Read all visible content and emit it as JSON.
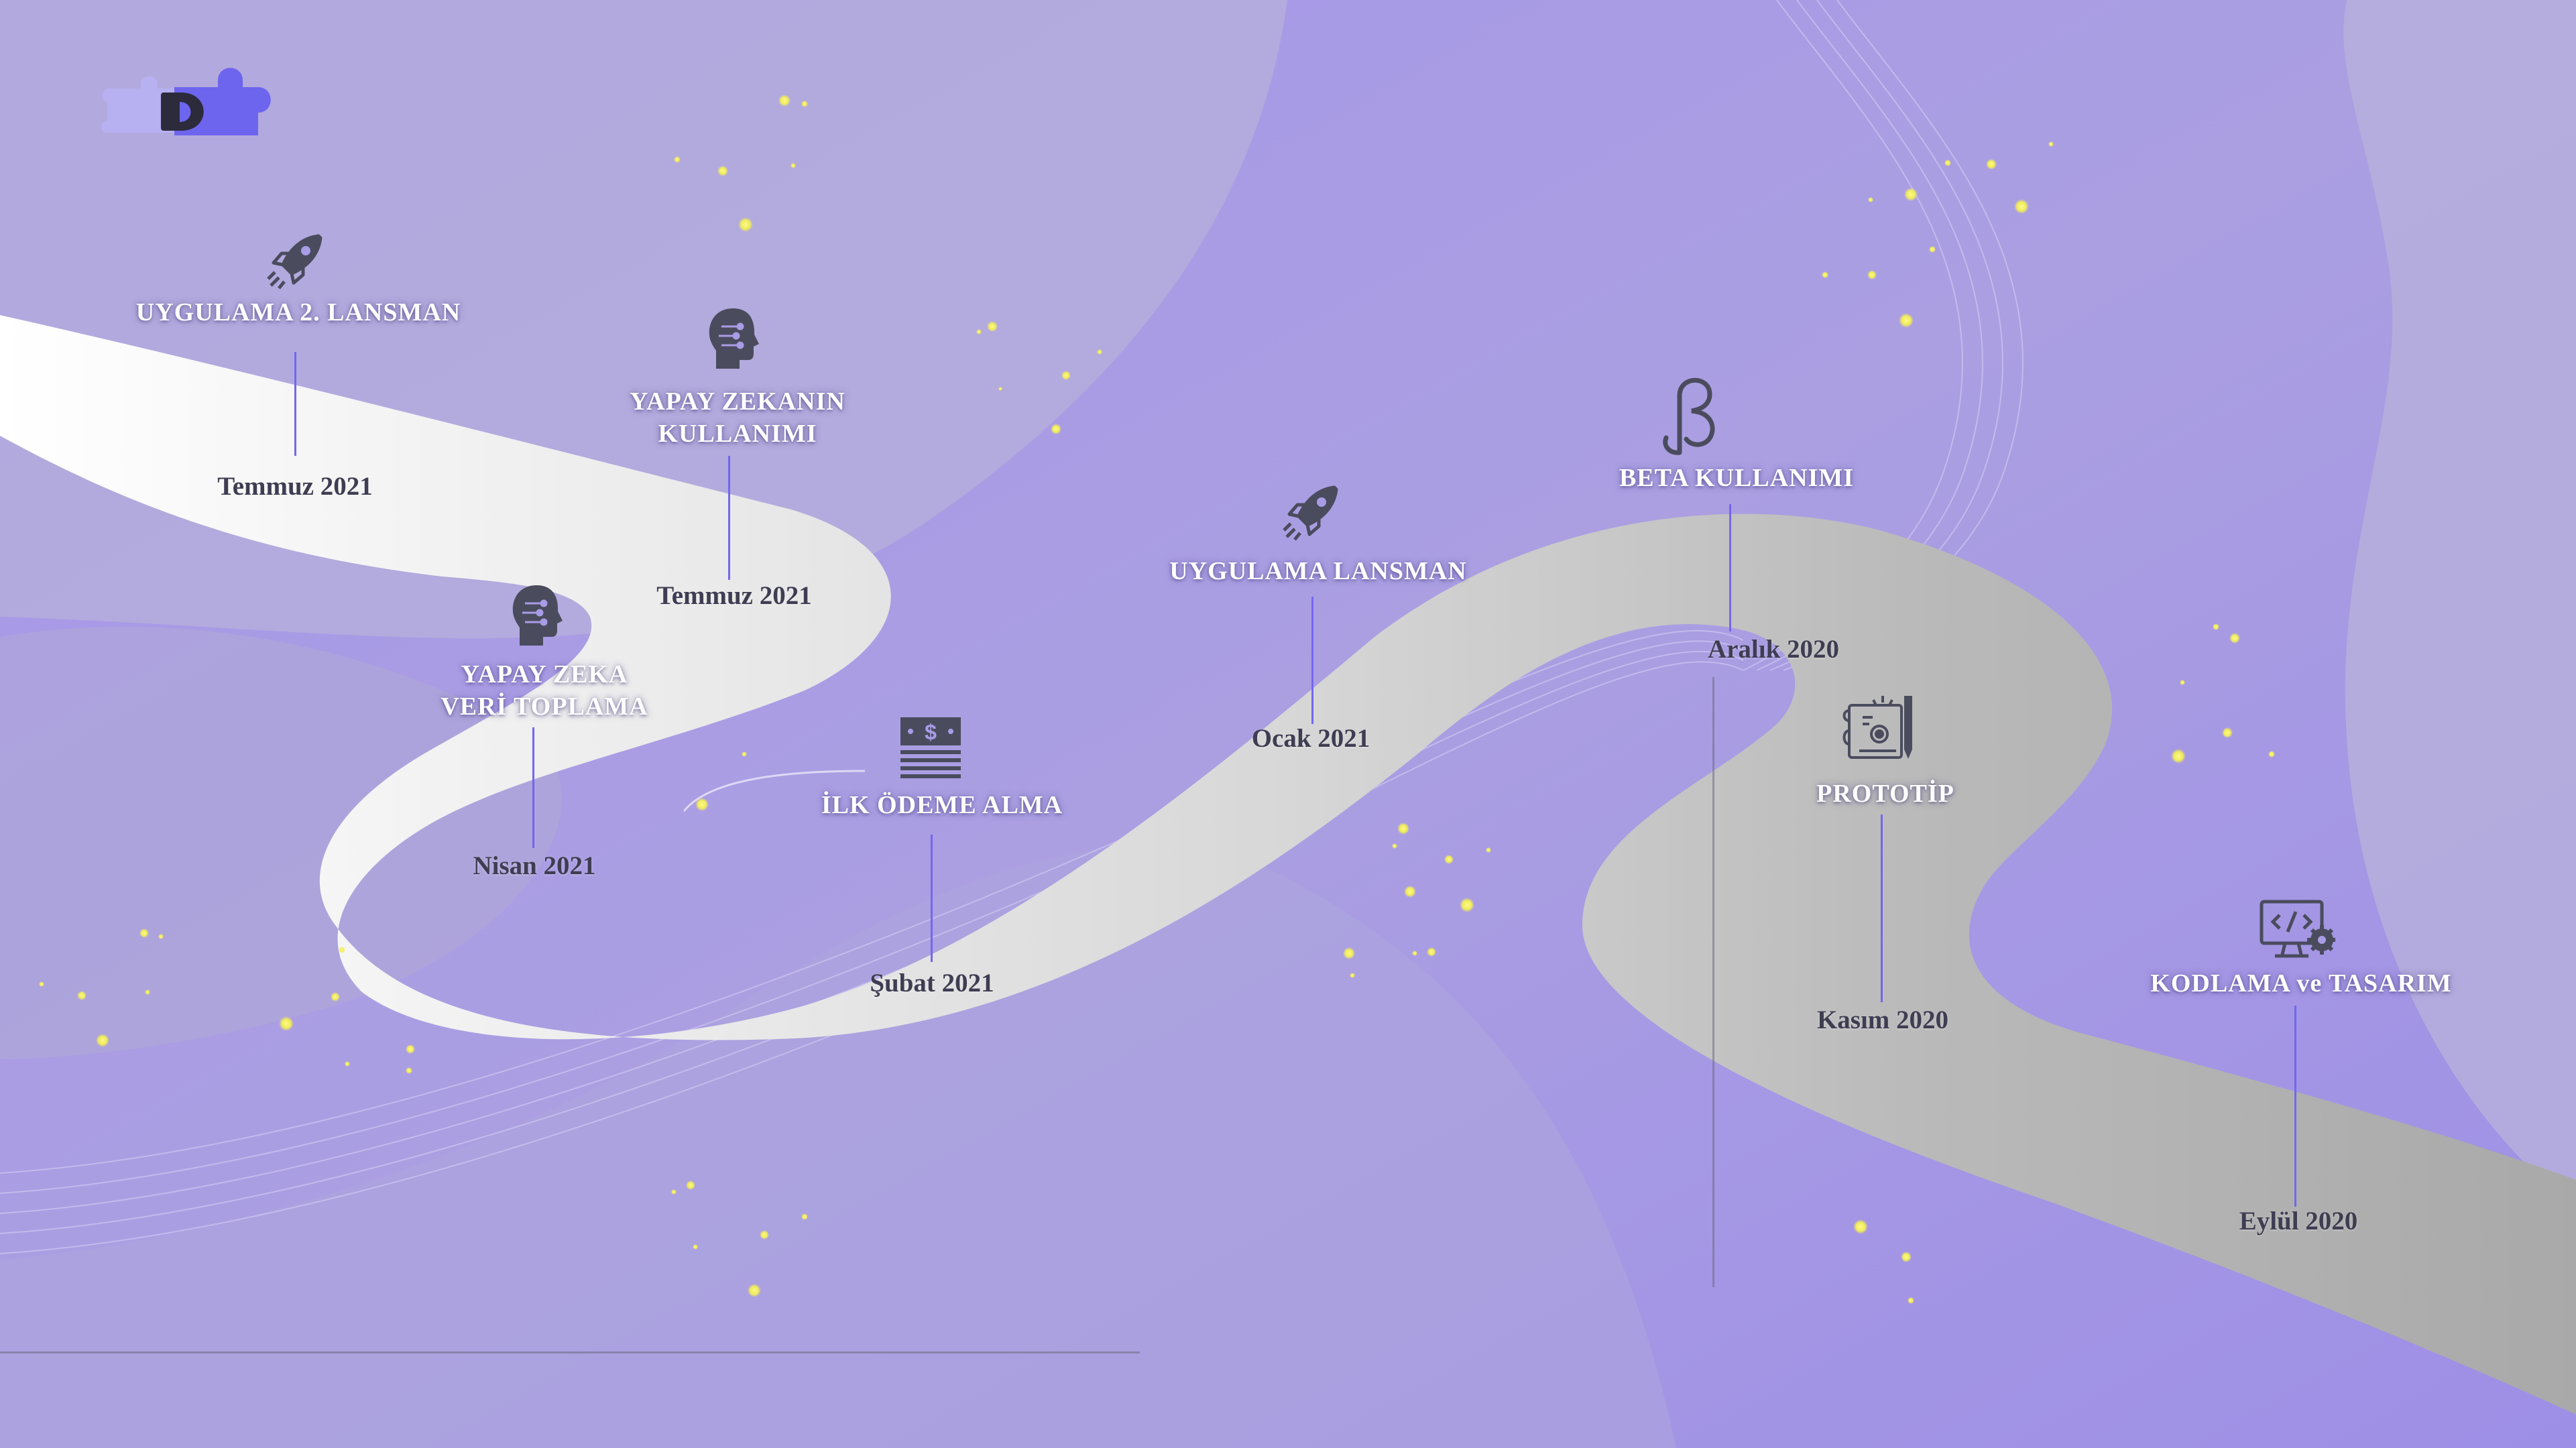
{
  "colors": {
    "background_purple": "#a99ce6",
    "road_light": "#ebebeb",
    "road_gray": "#b4b4b4",
    "accent_line": "#7367ee",
    "sparkle": "#f4f06c",
    "title_text": "#ffffff",
    "date_text": "#3f3d52",
    "icon_color": "#4a4c5e"
  },
  "logo": {
    "icon": "puzzle-piece-logo"
  },
  "milestones": [
    {
      "id": "kodlama",
      "title": "KODLAMA ve TASARIM",
      "date": "Eylül 2020",
      "icon": "monitor-code-gear-icon"
    },
    {
      "id": "prototip",
      "title": "PROTOTİP",
      "date": "Kasım 2020",
      "icon": "blueprint-pencil-icon"
    },
    {
      "id": "beta",
      "title": "BETA KULLANIMI",
      "date": "Aralık 2020",
      "icon": "beta-symbol-icon"
    },
    {
      "id": "lansman",
      "title": "UYGULAMA LANSMAN",
      "date": "Ocak 2021",
      "icon": "rocket-icon"
    },
    {
      "id": "odeme",
      "title": "İLK ÖDEME ALMA",
      "date": "Şubat 2021",
      "icon": "money-stack-icon"
    },
    {
      "id": "veri",
      "title_lines": [
        "YAPAY ZEKA",
        "VERİ TOPLAMA"
      ],
      "date": "Nisan 2021",
      "icon": "ai-head-icon"
    },
    {
      "id": "kullanim",
      "title_lines": [
        "YAPAY ZEKANIN",
        "KULLANIMI"
      ],
      "date": "Temmuz 2021",
      "icon": "ai-head-icon"
    },
    {
      "id": "lansman2",
      "title": "UYGULAMA 2. LANSMAN",
      "date": "Temmuz 2021",
      "icon": "rocket-icon"
    }
  ]
}
